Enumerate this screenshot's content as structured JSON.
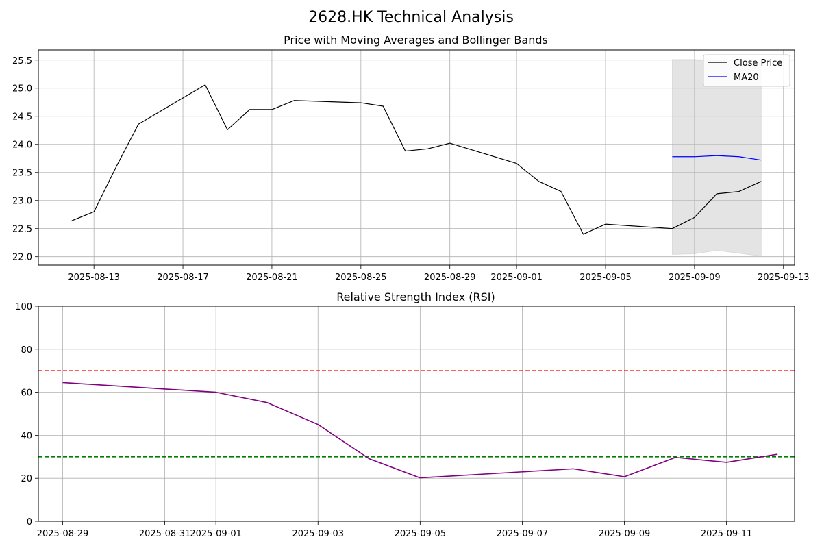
{
  "suptitle": "2628.HK Technical Analysis",
  "chart_data": [
    {
      "type": "line",
      "title": "Price with Moving Averages and Bollinger Bands",
      "x_type": "date",
      "xlim": [
        "2025-08-10T12:00",
        "2025-09-13T12:00"
      ],
      "ylim": [
        21.85,
        25.68
      ],
      "grid": true,
      "legend_position": "top-right",
      "xticks": [
        "2025-08-13",
        "2025-08-17",
        "2025-08-21",
        "2025-08-25",
        "2025-08-29",
        "2025-09-01",
        "2025-09-05",
        "2025-09-09",
        "2025-09-13"
      ],
      "yticks": [
        22.0,
        22.5,
        23.0,
        23.5,
        24.0,
        24.5,
        25.0,
        25.5
      ],
      "series": [
        {
          "name": "Close Price",
          "color": "#000000",
          "x": [
            "2025-08-12",
            "2025-08-13",
            "2025-08-14",
            "2025-08-15",
            "2025-08-18",
            "2025-08-19",
            "2025-08-20",
            "2025-08-21",
            "2025-08-22",
            "2025-08-25",
            "2025-08-26",
            "2025-08-27",
            "2025-08-28",
            "2025-08-29",
            "2025-09-01",
            "2025-09-02",
            "2025-09-03",
            "2025-09-04",
            "2025-09-05",
            "2025-09-08",
            "2025-09-09",
            "2025-09-10",
            "2025-09-11",
            "2025-09-12"
          ],
          "values": [
            22.64,
            22.8,
            23.6,
            24.36,
            25.06,
            24.26,
            24.62,
            24.62,
            24.78,
            24.74,
            24.68,
            23.88,
            23.92,
            24.02,
            23.66,
            23.34,
            23.16,
            22.4,
            22.58,
            22.5,
            22.7,
            23.12,
            23.16,
            23.34
          ]
        },
        {
          "name": "MA20",
          "color": "#0000ff",
          "x": [
            "2025-09-08",
            "2025-09-09",
            "2025-09-10",
            "2025-09-11",
            "2025-09-12"
          ],
          "values": [
            23.78,
            23.78,
            23.8,
            23.78,
            23.72
          ]
        }
      ],
      "bands": {
        "color": "#b3b3b3",
        "x": [
          "2025-09-08",
          "2025-09-09",
          "2025-09-10",
          "2025-09-11",
          "2025-09-12"
        ],
        "upper": [
          25.51,
          25.51,
          25.5,
          25.5,
          25.45
        ],
        "lower": [
          22.04,
          22.05,
          22.11,
          22.06,
          22.01
        ]
      }
    },
    {
      "type": "line",
      "title": "Relative Strength Index (RSI)",
      "x_type": "date",
      "xlim": [
        "2025-08-28T12:34",
        "2025-09-12T08:00"
      ],
      "ylim": [
        0,
        100
      ],
      "grid": true,
      "xticks": [
        "2025-08-29",
        "2025-08-31",
        "2025-09-01",
        "2025-09-03",
        "2025-09-05",
        "2025-09-07",
        "2025-09-09",
        "2025-09-11"
      ],
      "yticks": [
        0,
        20,
        40,
        60,
        80,
        100
      ],
      "series": [
        {
          "color": "#800080",
          "x": [
            "2025-08-29",
            "2025-09-01",
            "2025-09-02",
            "2025-09-03",
            "2025-09-04",
            "2025-09-05",
            "2025-09-08",
            "2025-09-09",
            "2025-09-10",
            "2025-09-11",
            "2025-09-12"
          ],
          "values": [
            64.5,
            60.0,
            55.2,
            45.0,
            29.1,
            20.2,
            24.4,
            20.7,
            29.7,
            27.4,
            31.2
          ]
        }
      ],
      "hlines": [
        {
          "y": 70,
          "color": "#ff0000",
          "style": "dashed"
        },
        {
          "y": 30,
          "color": "#008000",
          "style": "dashed"
        }
      ]
    }
  ]
}
